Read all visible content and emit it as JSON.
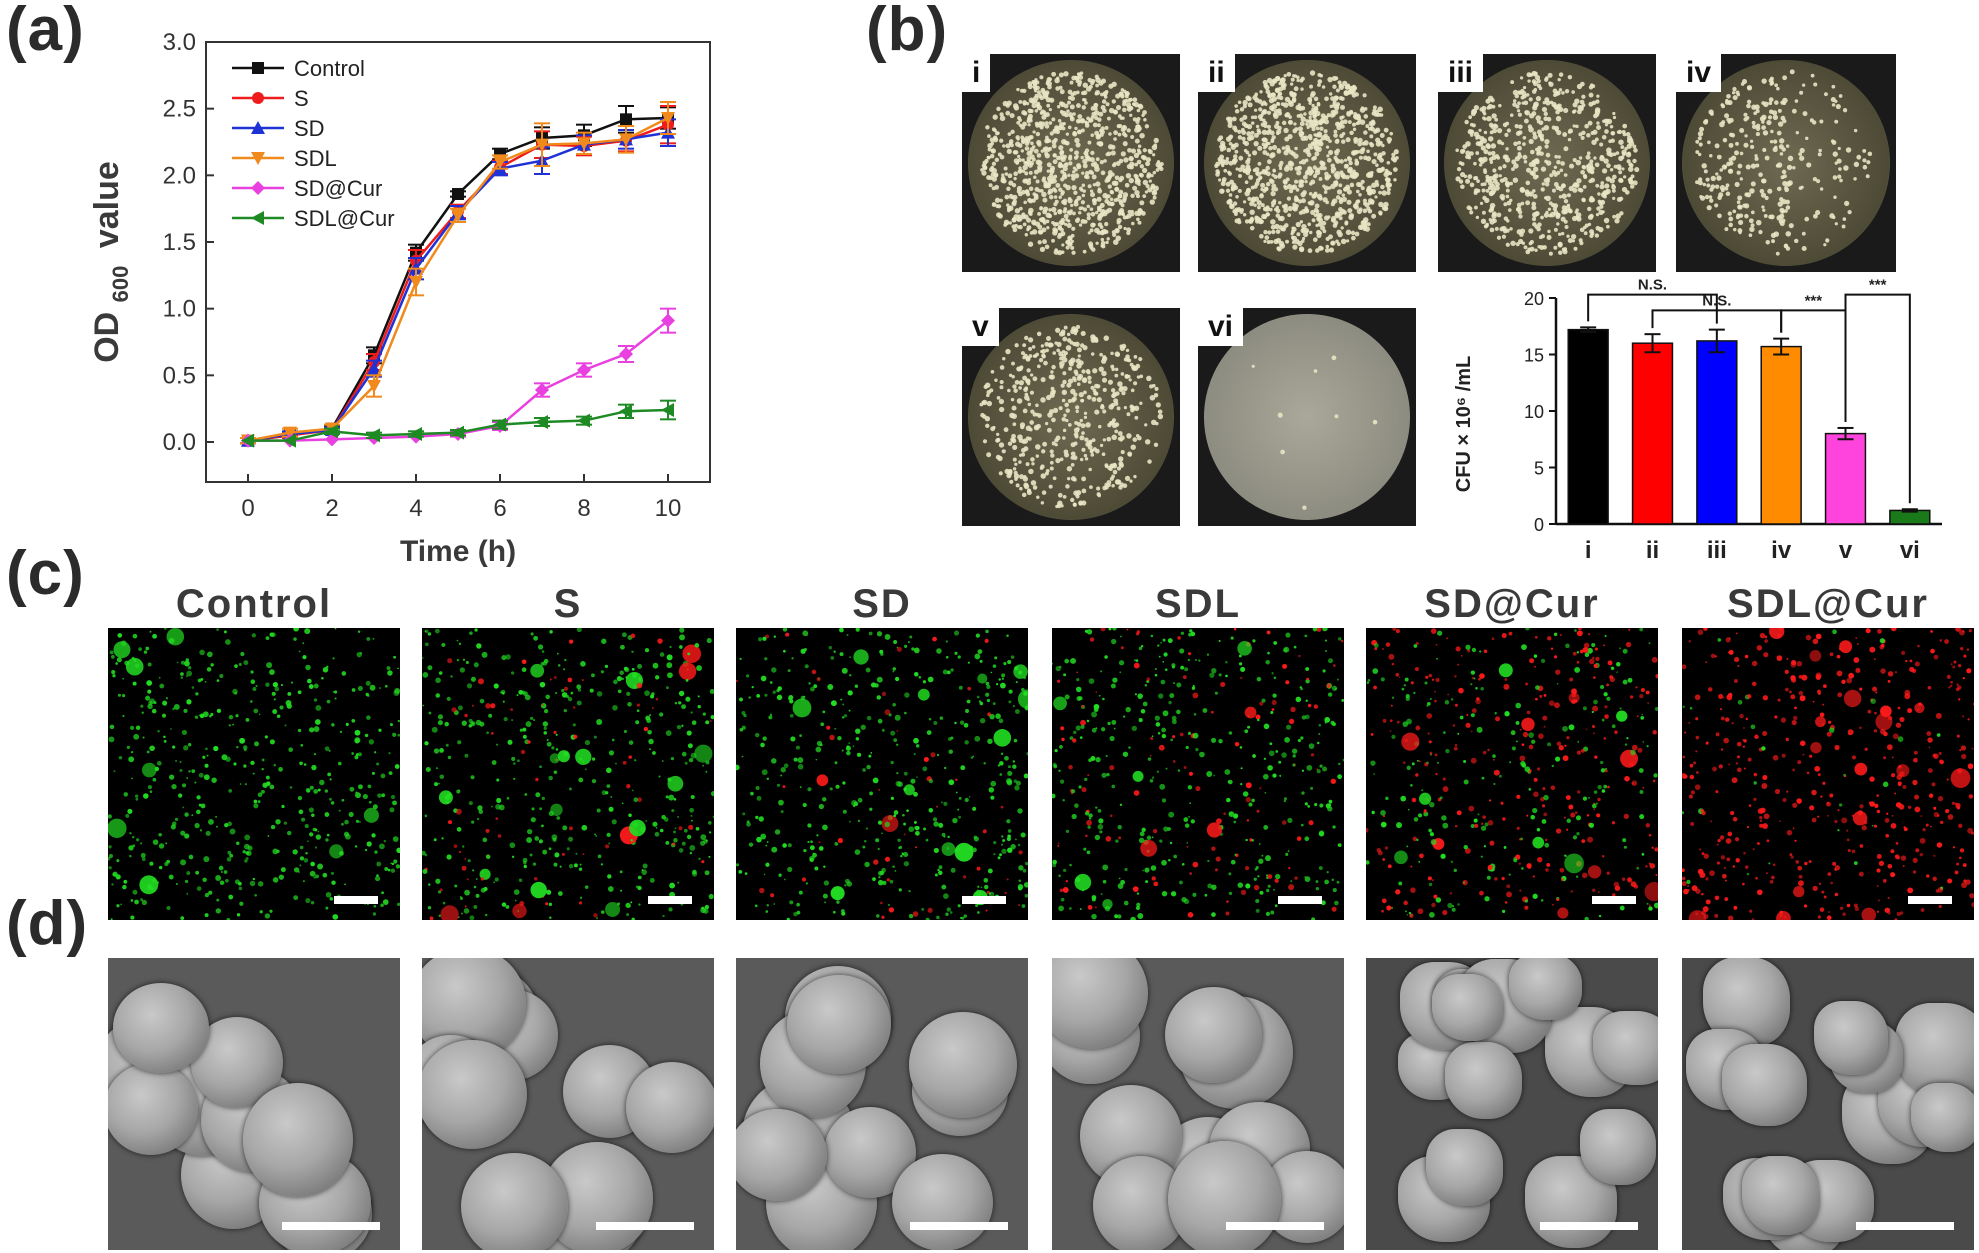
{
  "panels": {
    "a": "(a)",
    "b": "(b)",
    "c": "(c)",
    "d": "(d)"
  },
  "chart_data": [
    {
      "type": "line",
      "xlabel": "Time (h)",
      "ylabel_main": "OD",
      "ylabel_sub": "600",
      "ylabel_tail": "value",
      "xlim": [
        -1,
        11
      ],
      "ylim": [
        -0.3,
        3.0
      ],
      "xticks": [
        0,
        2,
        4,
        6,
        8,
        10
      ],
      "yticks": [
        0.0,
        0.5,
        1.0,
        1.5,
        2.0,
        2.5,
        3.0
      ],
      "ytick_labels": [
        "0.0",
        "0.5",
        "1.0",
        "1.5",
        "2.0",
        "2.5",
        "3.0"
      ],
      "legend_position": "top-left",
      "x": [
        0,
        1,
        2,
        3,
        4,
        5,
        6,
        7,
        8,
        9,
        10
      ],
      "series": [
        {
          "name": "Control",
          "color": "#111111",
          "marker": "square",
          "values": [
            0.01,
            0.05,
            0.1,
            0.65,
            1.42,
            1.86,
            2.16,
            2.28,
            2.3,
            2.42,
            2.43
          ],
          "errors": [
            0.02,
            0.02,
            0.02,
            0.06,
            0.06,
            0.02,
            0.04,
            0.08,
            0.08,
            0.1,
            0.08
          ]
        },
        {
          "name": "S",
          "color": "#ee1c1c",
          "marker": "circle",
          "values": [
            0.01,
            0.05,
            0.09,
            0.6,
            1.36,
            1.73,
            2.06,
            2.23,
            2.22,
            2.26,
            2.38
          ],
          "errors": [
            0.02,
            0.02,
            0.02,
            0.06,
            0.08,
            0.05,
            0.05,
            0.1,
            0.07,
            0.08,
            0.14
          ]
        },
        {
          "name": "SD",
          "color": "#1f32d6",
          "marker": "triangle-up",
          "values": [
            0.01,
            0.06,
            0.09,
            0.55,
            1.3,
            1.72,
            2.05,
            2.11,
            2.23,
            2.27,
            2.32
          ],
          "errors": [
            0.02,
            0.02,
            0.02,
            0.06,
            0.08,
            0.05,
            0.05,
            0.1,
            0.07,
            0.07,
            0.1
          ]
        },
        {
          "name": "SDL",
          "color": "#f08a1c",
          "marker": "triangle-down",
          "values": [
            0.01,
            0.07,
            0.1,
            0.42,
            1.2,
            1.7,
            2.1,
            2.23,
            2.24,
            2.27,
            2.43
          ],
          "errors": [
            0.02,
            0.03,
            0.03,
            0.08,
            0.1,
            0.05,
            0.05,
            0.16,
            0.08,
            0.1,
            0.12
          ]
        },
        {
          "name": "SD@Cur",
          "color": "#e940e0",
          "marker": "diamond",
          "values": [
            0.01,
            0.01,
            0.02,
            0.03,
            0.04,
            0.06,
            0.12,
            0.39,
            0.54,
            0.66,
            0.91
          ],
          "errors": [
            0.01,
            0.01,
            0.01,
            0.01,
            0.01,
            0.02,
            0.03,
            0.05,
            0.05,
            0.06,
            0.09
          ]
        },
        {
          "name": "SDL@Cur",
          "color": "#1e8a24",
          "marker": "triangle-left",
          "values": [
            0.01,
            0.01,
            0.08,
            0.05,
            0.06,
            0.07,
            0.13,
            0.15,
            0.16,
            0.23,
            0.24
          ],
          "errors": [
            0.01,
            0.01,
            0.02,
            0.02,
            0.02,
            0.02,
            0.03,
            0.03,
            0.03,
            0.05,
            0.07
          ]
        }
      ]
    },
    {
      "type": "bar",
      "ylabel": "CFU × 10⁶ /mL",
      "ylim": [
        0,
        20
      ],
      "yticks": [
        0,
        5,
        10,
        15,
        20
      ],
      "categories": [
        "i",
        "ii",
        "iii",
        "iv",
        "v",
        "vi"
      ],
      "values": [
        17.2,
        16.0,
        16.2,
        15.7,
        8.0,
        1.2
      ],
      "errors": [
        0.2,
        0.8,
        1.0,
        0.7,
        0.5,
        0.1
      ],
      "colors": [
        "#000000",
        "#ff0000",
        "#0000ff",
        "#ff8c00",
        "#ff44dd",
        "#1a7a1a"
      ],
      "annotations": [
        {
          "from": "i",
          "to": "iii",
          "label": "N.S.",
          "level": 20.3
        },
        {
          "from": "ii",
          "to": "iv",
          "label": "N.S.",
          "level": 18.9
        },
        {
          "from": "iv",
          "to": "v",
          "label": "***",
          "level": 18.9
        },
        {
          "from": "v",
          "to": "vi",
          "label": "***",
          "level": 20.3
        }
      ]
    }
  ],
  "plates": [
    {
      "label": "i",
      "density": 900
    },
    {
      "label": "ii",
      "density": 950
    },
    {
      "label": "iii",
      "density": 650
    },
    {
      "label": "iv",
      "density": 450
    },
    {
      "label": "v",
      "density": 500
    },
    {
      "label": "vi",
      "density": 8
    }
  ],
  "columns": [
    "Control",
    "S",
    "SD",
    "SDL",
    "SD@Cur",
    "SDL@Cur"
  ],
  "clsm_red_fraction": [
    0.0,
    0.12,
    0.12,
    0.2,
    0.55,
    0.95
  ],
  "colors": {
    "live": "#22dd22",
    "dead": "#ff1a1a",
    "agar": "#c9c3a0"
  }
}
